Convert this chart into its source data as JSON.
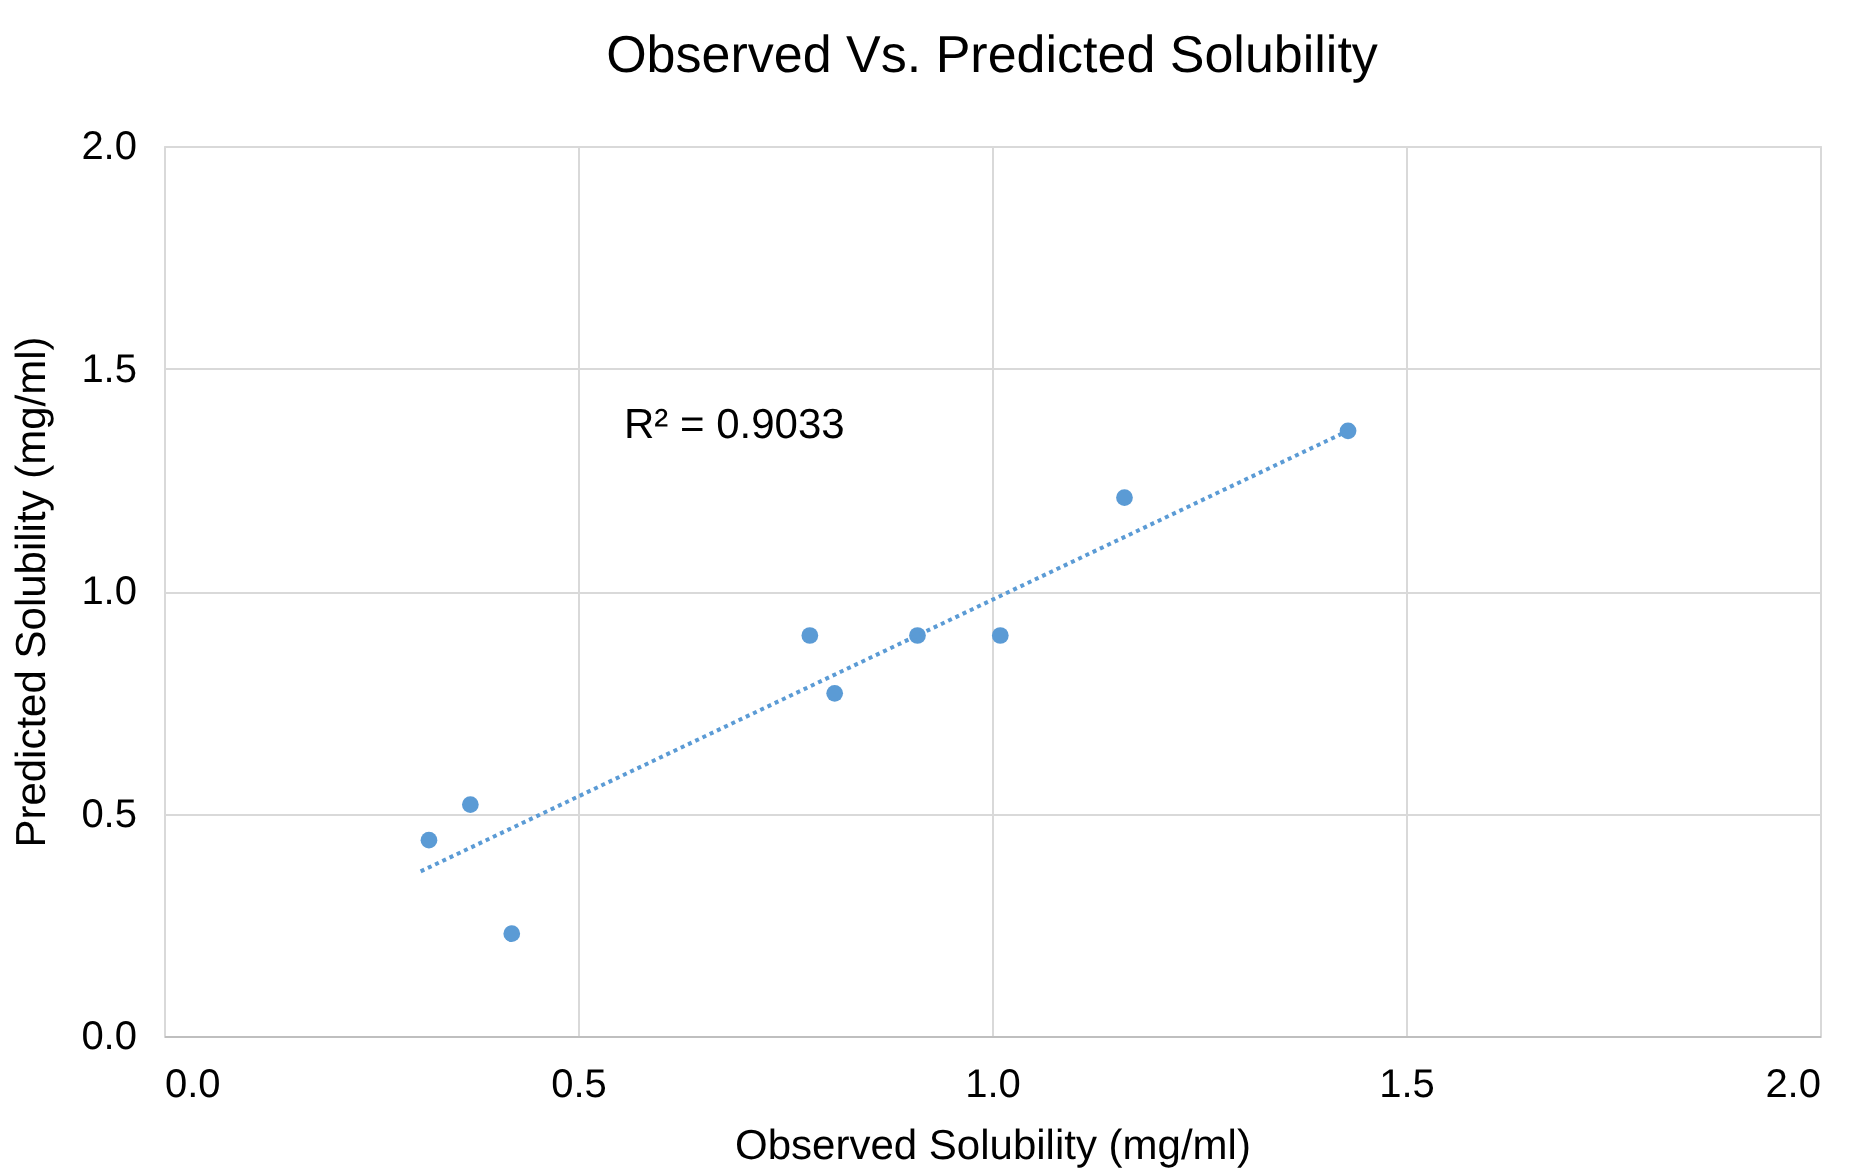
{
  "chart_data": {
    "type": "scatter",
    "title": "Observed Vs. Predicted Solubility",
    "xlabel": "Observed Solubility (mg/ml)",
    "ylabel": "Predicted Solubility (mg/ml)",
    "xlim": [
      0,
      2
    ],
    "ylim": [
      0,
      2
    ],
    "xticks": [
      {
        "value": 0,
        "label": "0.0"
      },
      {
        "value": 0.5,
        "label": "0.5"
      },
      {
        "value": 1,
        "label": "1.0"
      },
      {
        "value": 1.5,
        "label": "1.5"
      },
      {
        "value": 2,
        "label": "2.0"
      }
    ],
    "yticks": [
      {
        "value": 0,
        "label": "0.0"
      },
      {
        "value": 0.5,
        "label": "0.5"
      },
      {
        "value": 1,
        "label": "1.0"
      },
      {
        "value": 1.5,
        "label": "1.5"
      },
      {
        "value": 2,
        "label": "2.0"
      }
    ],
    "grid": true,
    "marker": "circle",
    "series": [
      {
        "color": "#5b9bd5",
        "x": [
          0.32,
          0.37,
          0.42,
          0.78,
          0.81,
          0.91,
          1.01,
          1.16,
          1.43
        ],
        "values": [
          0.44,
          0.52,
          0.23,
          0.9,
          0.77,
          0.9,
          0.9,
          1.21,
          1.36
        ]
      },
      {
        "type": "line",
        "color": "#5b9bd5",
        "line_style": "dotted",
        "marker": "none",
        "x": [
          0.31,
          1.43
        ],
        "values": [
          0.37,
          1.36
        ]
      }
    ],
    "annotations": [
      "R² = 0.9033"
    ]
  }
}
